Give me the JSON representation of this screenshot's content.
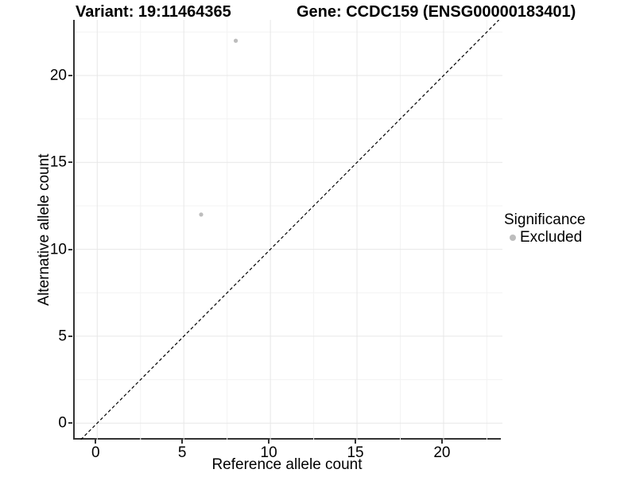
{
  "titles": {
    "left": "Variant: 19:11464365",
    "right": "Gene: CCDC159 (ENSG00000183401)"
  },
  "legend": {
    "title": "Significance",
    "items": [
      {
        "label": "Excluded",
        "color": "#bdbdbd"
      }
    ]
  },
  "colors": {
    "axis_line": "#333333",
    "grid_major": "#e7e7e7",
    "grid_minor": "#f3f3f3",
    "reference_line": "#000000",
    "point": "#bdbdbd",
    "text": "#000000",
    "background": "#ffffff"
  },
  "chart_data": {
    "type": "scatter",
    "title": "Variant: 19:11464365        Gene: CCDC159 (ENSG00000183401)",
    "xlabel": "Reference allele count",
    "ylabel": "Alternative allele count",
    "xlim": [
      -1.3,
      23.4
    ],
    "ylim": [
      -0.95,
      23.2
    ],
    "xticks": [
      0,
      5,
      10,
      15,
      20
    ],
    "yticks": [
      0,
      5,
      10,
      15,
      20
    ],
    "minor_xticks": [
      2.5,
      7.5,
      12.5,
      17.5,
      22.5
    ],
    "minor_yticks": [
      2.5,
      7.5,
      12.5,
      17.5,
      22.5
    ],
    "grid": true,
    "legend_position": "right",
    "series": [
      {
        "name": "Excluded",
        "color": "#bdbdbd",
        "points": [
          {
            "x": 6,
            "y": 12
          },
          {
            "x": 8,
            "y": 22
          }
        ]
      }
    ],
    "reference_line": {
      "type": "identity",
      "slope": 1,
      "intercept": 0,
      "style": "dashed"
    }
  }
}
